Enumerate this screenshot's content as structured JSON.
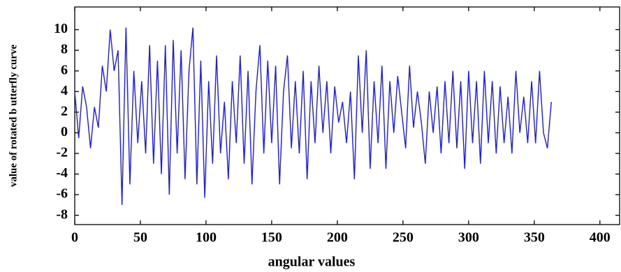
{
  "chart_data": {
    "type": "line",
    "xlabel": "angular values",
    "ylabel": "value of rotated b utterfly curve",
    "x": [
      0,
      3,
      6,
      9,
      12,
      15,
      18,
      21,
      24,
      27,
      30,
      33,
      36,
      39,
      42,
      45,
      48,
      51,
      54,
      57,
      60,
      63,
      66,
      69,
      72,
      75,
      78,
      81,
      84,
      87,
      90,
      93,
      96,
      99,
      102,
      105,
      108,
      111,
      114,
      117,
      120,
      123,
      126,
      129,
      132,
      135,
      138,
      141,
      144,
      147,
      150,
      153,
      156,
      159,
      162,
      165,
      168,
      171,
      174,
      177,
      180,
      183,
      186,
      189,
      192,
      195,
      198,
      201,
      204,
      207,
      210,
      213,
      216,
      219,
      222,
      225,
      228,
      231,
      234,
      237,
      240,
      243,
      246,
      249,
      252,
      255,
      258,
      261,
      264,
      267,
      270,
      273,
      276,
      279,
      282,
      285,
      288,
      291,
      294,
      297,
      300,
      303,
      306,
      309,
      312,
      315,
      318,
      321,
      324,
      327,
      330,
      333,
      336,
      339,
      342,
      345,
      348,
      351,
      354,
      357,
      360,
      363
    ],
    "series": [
      {
        "name": "rotated butterfly curve",
        "color": "#1a1aff",
        "values": [
          4,
          -0.5,
          4.5,
          2.5,
          -1.5,
          2.5,
          0.5,
          6.5,
          4,
          10,
          6,
          8,
          -7,
          10.2,
          -5,
          6,
          -1,
          5,
          -2,
          8.5,
          -3,
          7,
          -4,
          8.5,
          -6,
          9,
          -2,
          8,
          -4.5,
          6,
          10.2,
          -5,
          7,
          -6.3,
          5,
          -3,
          7.5,
          -2,
          3,
          -4.5,
          5,
          -1,
          7.5,
          -3,
          6,
          -5,
          4,
          8.5,
          -2,
          7,
          -1,
          6.5,
          -5,
          4,
          7.5,
          -1.5,
          5,
          -2,
          6,
          -4.5,
          5,
          -1,
          6.5,
          0,
          5,
          -2,
          4.5,
          1,
          3,
          -1,
          4,
          -4.5,
          7.5,
          0,
          8,
          -3.5,
          5,
          -1,
          6.5,
          -3.5,
          5,
          0,
          5.5,
          2,
          -1.5,
          6.5,
          0.5,
          4,
          1,
          -3,
          4,
          0,
          4.5,
          -2,
          5,
          -1,
          6,
          -1.5,
          5,
          -3.5,
          6,
          -1,
          5,
          -3,
          6,
          -1,
          5,
          -2,
          4.5,
          -1,
          3.5,
          -2,
          6,
          0,
          3.5,
          -1,
          5,
          -1,
          6,
          0,
          -1.5,
          3
        ]
      }
    ],
    "xlim": [
      0,
      415
    ],
    "ylim": [
      -8.9,
      12.2
    ],
    "xticks": [
      0,
      50,
      100,
      150,
      200,
      250,
      300,
      350,
      400
    ],
    "yticks": [
      -8,
      -6,
      -4,
      -2,
      0,
      2,
      4,
      6,
      8,
      10
    ],
    "grid": false
  }
}
